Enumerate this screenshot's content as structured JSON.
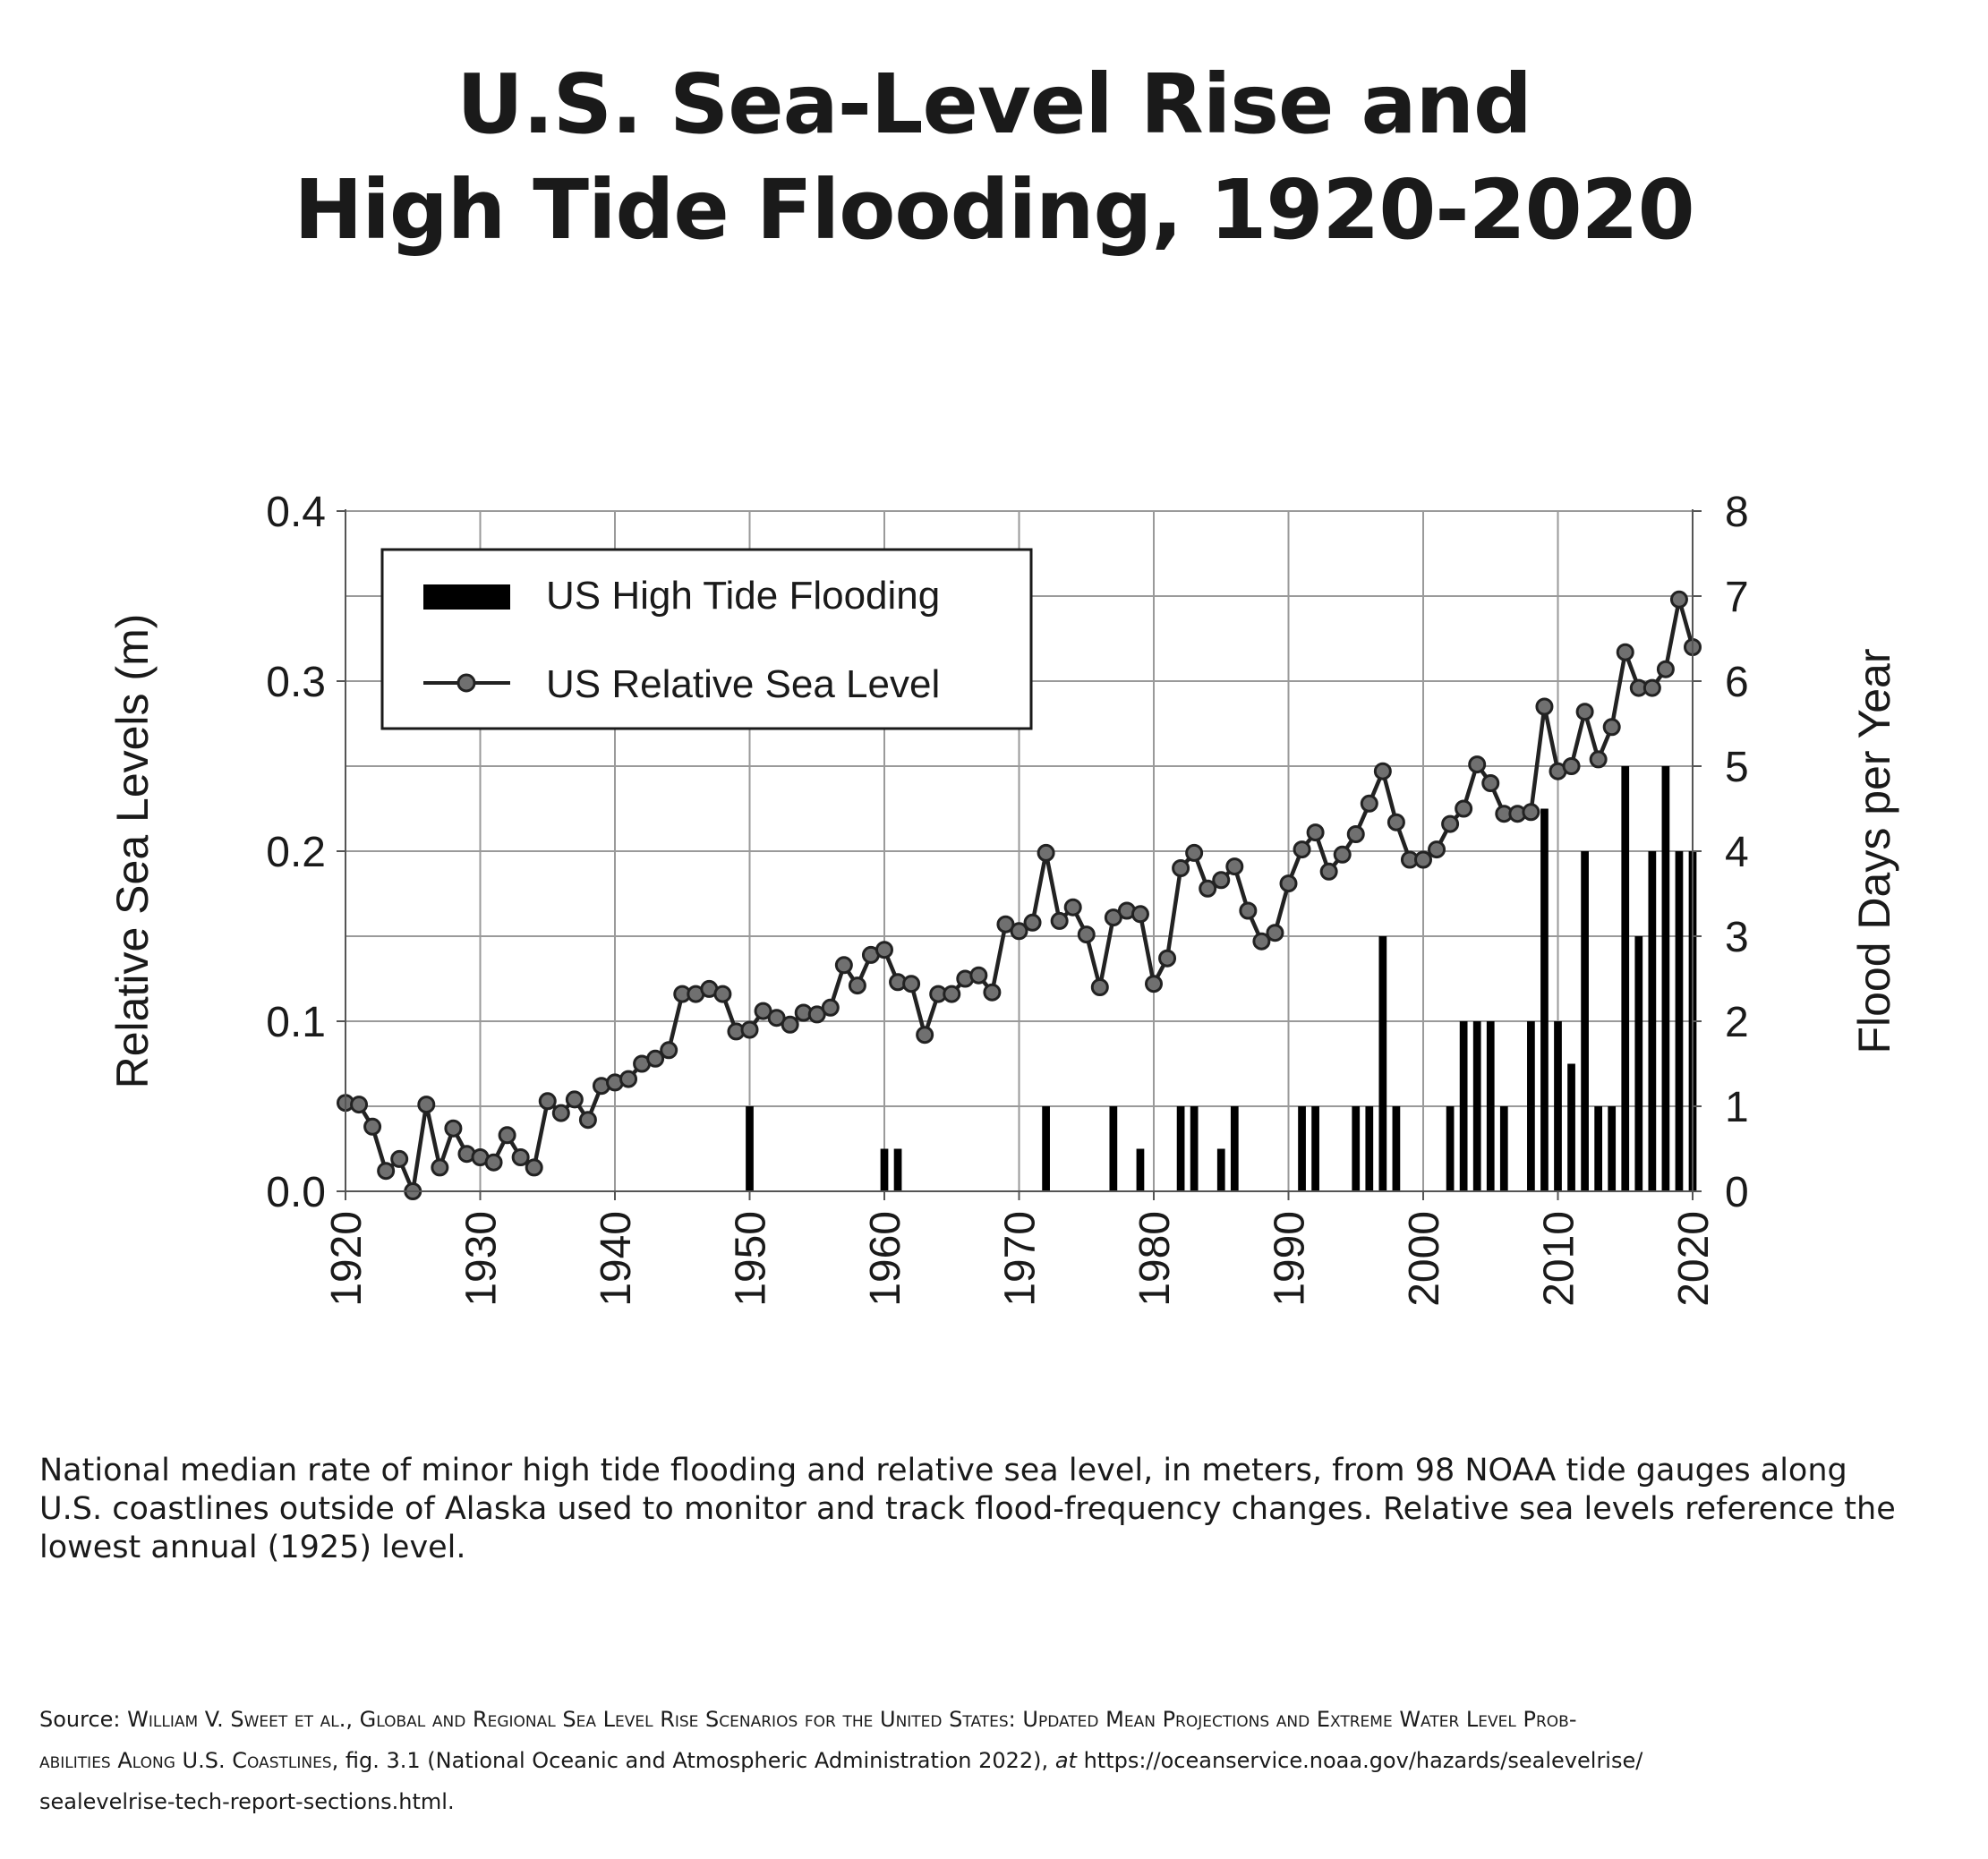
{
  "title_lines": [
    "U.S. Sea-Level Rise and",
    "High Tide Flooding, 1920-2020"
  ],
  "caption_lines": [
    "National median rate of minor high tide flooding and relative sea level, in meters, from 98 NOAA tide gauges along",
    "U.S. coastlines outside of Alaska used to monitor and track flood-frequency changes. Relative sea levels reference the",
    "lowest annual (1925) level."
  ],
  "source": {
    "prefix": "Source: ",
    "authors_title_line1": "William V. Sweet et al., Global and Regional Sea Level Rise Scenarios for the United States: Updated Mean Projections and Extreme Water Level Prob-",
    "authors_title_line2": "abilities Along U.S. Coastlines",
    "line2_rest": ", fig. 3.1 (National Oceanic and Atmospheric Administration 2022), ",
    "at_word": "at",
    "url_part1": " https://oceanservice.noaa.gov/hazards/sealevelrise/",
    "url_part2": "sealevelrise-tech-report-sections.html."
  },
  "colors": {
    "bar": "#000000",
    "line": "#222222",
    "marker_fill": "#707070",
    "grid": "#9a9a9a",
    "text": "#1a1a1a"
  },
  "chart_data": {
    "type": "bar+line",
    "xlim": [
      1920,
      2020
    ],
    "x_ticks": [
      1920,
      1930,
      1940,
      1950,
      1960,
      1970,
      1980,
      1990,
      2000,
      2010,
      2020
    ],
    "y_left": {
      "label": "Relative Sea Levels (m)",
      "lim": [
        0,
        0.4
      ],
      "ticks": [
        0.0,
        0.1,
        0.2,
        0.3,
        0.4
      ],
      "tick_labels": [
        "0.0",
        "0.1",
        "0.2",
        "0.3",
        "0.4"
      ]
    },
    "y_right": {
      "label": "Flood Days per Year",
      "lim": [
        0,
        8
      ],
      "ticks": [
        0,
        1,
        2,
        3,
        4,
        5,
        6,
        7,
        8
      ],
      "tick_labels": [
        "0",
        "1",
        "2",
        "3",
        "4",
        "5",
        "6",
        "7",
        "8"
      ]
    },
    "grid": true,
    "legend": {
      "placement": "top-left",
      "entries": [
        "US High Tide Flooding",
        "US Relative Sea Level"
      ]
    },
    "flooding": {
      "name": "US High Tide Flooding",
      "axis": "right",
      "years": [
        1950,
        1960,
        1961,
        1972,
        1977,
        1979,
        1982,
        1983,
        1985,
        1986,
        1991,
        1992,
        1995,
        1996,
        1997,
        1998,
        2002,
        2003,
        2004,
        2005,
        2006,
        2008,
        2009,
        2010,
        2011,
        2012,
        2013,
        2014,
        2015,
        2016,
        2017,
        2018,
        2019,
        2020
      ],
      "values": [
        1,
        0.5,
        0.5,
        1,
        1,
        0.5,
        1,
        1,
        0.5,
        1,
        1,
        1,
        1,
        1,
        3,
        1,
        1,
        2,
        2,
        2,
        1,
        2,
        4.5,
        2,
        1.5,
        4,
        1,
        1,
        5,
        3,
        4,
        5,
        4,
        4
      ]
    },
    "sea_level": {
      "name": "US Relative Sea Level",
      "axis": "left",
      "x": [
        1920,
        1921,
        1922,
        1923,
        1924,
        1925,
        1926,
        1927,
        1928,
        1929,
        1930,
        1931,
        1932,
        1933,
        1934,
        1935,
        1936,
        1937,
        1938,
        1939,
        1940,
        1941,
        1942,
        1943,
        1944,
        1945,
        1946,
        1947,
        1948,
        1949,
        1950,
        1951,
        1952,
        1953,
        1954,
        1955,
        1956,
        1957,
        1958,
        1959,
        1960,
        1961,
        1962,
        1963,
        1964,
        1965,
        1966,
        1967,
        1968,
        1969,
        1970,
        1971,
        1972,
        1973,
        1974,
        1975,
        1976,
        1977,
        1978,
        1979,
        1980,
        1981,
        1982,
        1983,
        1984,
        1985,
        1986,
        1987,
        1988,
        1989,
        1990,
        1991,
        1992,
        1993,
        1994,
        1995,
        1996,
        1997,
        1998,
        1999,
        2000,
        2001,
        2002,
        2003,
        2004,
        2005,
        2006,
        2007,
        2008,
        2009,
        2010,
        2011,
        2012,
        2013,
        2014,
        2015,
        2016,
        2017,
        2018,
        2019,
        2020
      ],
      "y": [
        0.052,
        0.051,
        0.038,
        0.012,
        0.019,
        0.0,
        0.051,
        0.014,
        0.037,
        0.022,
        0.02,
        0.017,
        0.033,
        0.02,
        0.014,
        0.053,
        0.046,
        0.054,
        0.042,
        0.062,
        0.064,
        0.066,
        0.075,
        0.078,
        0.083,
        0.116,
        0.116,
        0.119,
        0.116,
        0.094,
        0.095,
        0.106,
        0.102,
        0.098,
        0.105,
        0.104,
        0.108,
        0.133,
        0.121,
        0.139,
        0.142,
        0.123,
        0.122,
        0.092,
        0.116,
        0.116,
        0.125,
        0.127,
        0.117,
        0.157,
        0.153,
        0.158,
        0.199,
        0.159,
        0.167,
        0.151,
        0.12,
        0.161,
        0.165,
        0.163,
        0.122,
        0.137,
        0.19,
        0.199,
        0.178,
        0.183,
        0.191,
        0.165,
        0.147,
        0.152,
        0.181,
        0.201,
        0.211,
        0.188,
        0.198,
        0.21,
        0.228,
        0.247,
        0.217,
        0.195,
        0.195,
        0.201,
        0.216,
        0.225,
        0.251,
        0.24,
        0.222,
        0.222,
        0.223,
        0.285,
        0.247,
        0.25,
        0.282,
        0.254,
        0.273,
        0.317,
        0.296,
        0.296,
        0.307,
        0.348,
        0.32
      ]
    }
  }
}
